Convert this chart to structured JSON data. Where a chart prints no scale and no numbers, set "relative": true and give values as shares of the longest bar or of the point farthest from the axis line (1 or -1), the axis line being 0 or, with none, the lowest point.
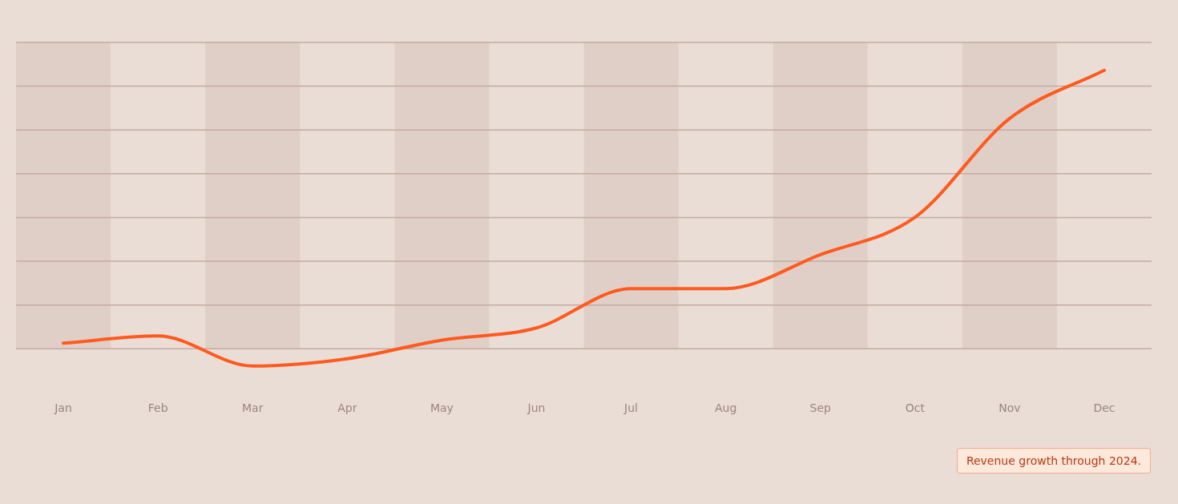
{
  "chart_data": {
    "type": "line",
    "relative": true,
    "categories": [
      "Jan",
      "Feb",
      "Mar",
      "Apr",
      "May",
      "Jun",
      "Jul",
      "Aug",
      "Sep",
      "Oct",
      "Nov",
      "Dec"
    ],
    "series": [
      {
        "color": "#ff5a1f",
        "values": [
          0.02,
          0.046,
          -0.062,
          -0.036,
          0.031,
          0.075,
          0.216,
          0.216,
          0.338,
          0.472,
          0.827,
          1
        ]
      }
    ],
    "bands": [
      {
        "axis": "x",
        "from": "Jan",
        "to": "Jan",
        "color": "#e0cfc7"
      },
      {
        "axis": "x",
        "from": "Mar",
        "to": "Mar",
        "color": "#e0cfc7"
      },
      {
        "axis": "x",
        "from": "May",
        "to": "May",
        "color": "#e0cfc7"
      },
      {
        "axis": "x",
        "from": "Jul",
        "to": "Jul",
        "color": "#e0cfc7"
      },
      {
        "axis": "x",
        "from": "Sep",
        "to": "Sep",
        "color": "#e0cfc7"
      },
      {
        "axis": "x",
        "from": "Nov",
        "to": "Nov",
        "color": "#e0cfc7"
      }
    ],
    "grid": "y",
    "legend": false,
    "marker": "none",
    "line_style": "solid",
    "annotations": [
      "Revenue growth through 2024."
    ]
  }
}
